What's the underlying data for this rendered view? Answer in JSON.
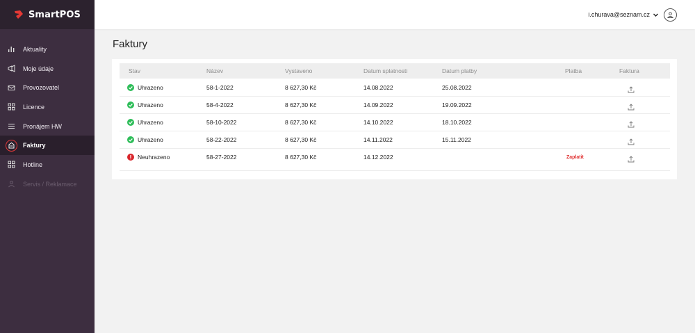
{
  "brand": {
    "name": "SmartPOS",
    "color": "#e53935"
  },
  "header": {
    "email": "i.churava@seznam.cz"
  },
  "sidebar": {
    "items": [
      {
        "label": "Aktuality",
        "icon": "bar-chart-icon"
      },
      {
        "label": "Moje údaje",
        "icon": "megaphone-icon"
      },
      {
        "label": "Provozovatel",
        "icon": "mail-icon"
      },
      {
        "label": "Licence",
        "icon": "grid-icon"
      },
      {
        "label": "Pronájem HW",
        "icon": "list-icon"
      },
      {
        "label": "Faktury",
        "icon": "invoice-icon",
        "active": true
      },
      {
        "label": "Hotline",
        "icon": "apps-icon"
      },
      {
        "label": "Servis / Reklamace",
        "icon": "person-icon",
        "disabled": true
      }
    ]
  },
  "page": {
    "title": "Faktury"
  },
  "table": {
    "columns": [
      "Stav",
      "Název",
      "Vystaveno",
      "Datum splatnosti",
      "Datum platby",
      "Platba",
      "Faktura"
    ],
    "rows": [
      {
        "status": "Uhrazeno",
        "paid": true,
        "name": "58-1-2022",
        "amount": "8 627,30 Kč",
        "due": "14.08.2022",
        "paid_on": "25.08.2022",
        "payment": ""
      },
      {
        "status": "Uhrazeno",
        "paid": true,
        "name": "58-4-2022",
        "amount": "8 627,30 Kč",
        "due": "14.09.2022",
        "paid_on": "19.09.2022",
        "payment": ""
      },
      {
        "status": "Uhrazeno",
        "paid": true,
        "name": "58-10-2022",
        "amount": "8 627,30 Kč",
        "due": "14.10.2022",
        "paid_on": "18.10.2022",
        "payment": ""
      },
      {
        "status": "Uhrazeno",
        "paid": true,
        "name": "58-22-2022",
        "amount": "8 627,30 Kč",
        "due": "14.11.2022",
        "paid_on": "15.11.2022",
        "payment": ""
      },
      {
        "status": "Neuhrazeno",
        "paid": false,
        "name": "58-27-2022",
        "amount": "8 627,30 Kč",
        "due": "14.12.2022",
        "paid_on": "",
        "payment": "Zaplatit"
      }
    ]
  },
  "colors": {
    "ok": "#2ebd59",
    "error": "#d9262c",
    "sidebar": "#3d2e40"
  }
}
